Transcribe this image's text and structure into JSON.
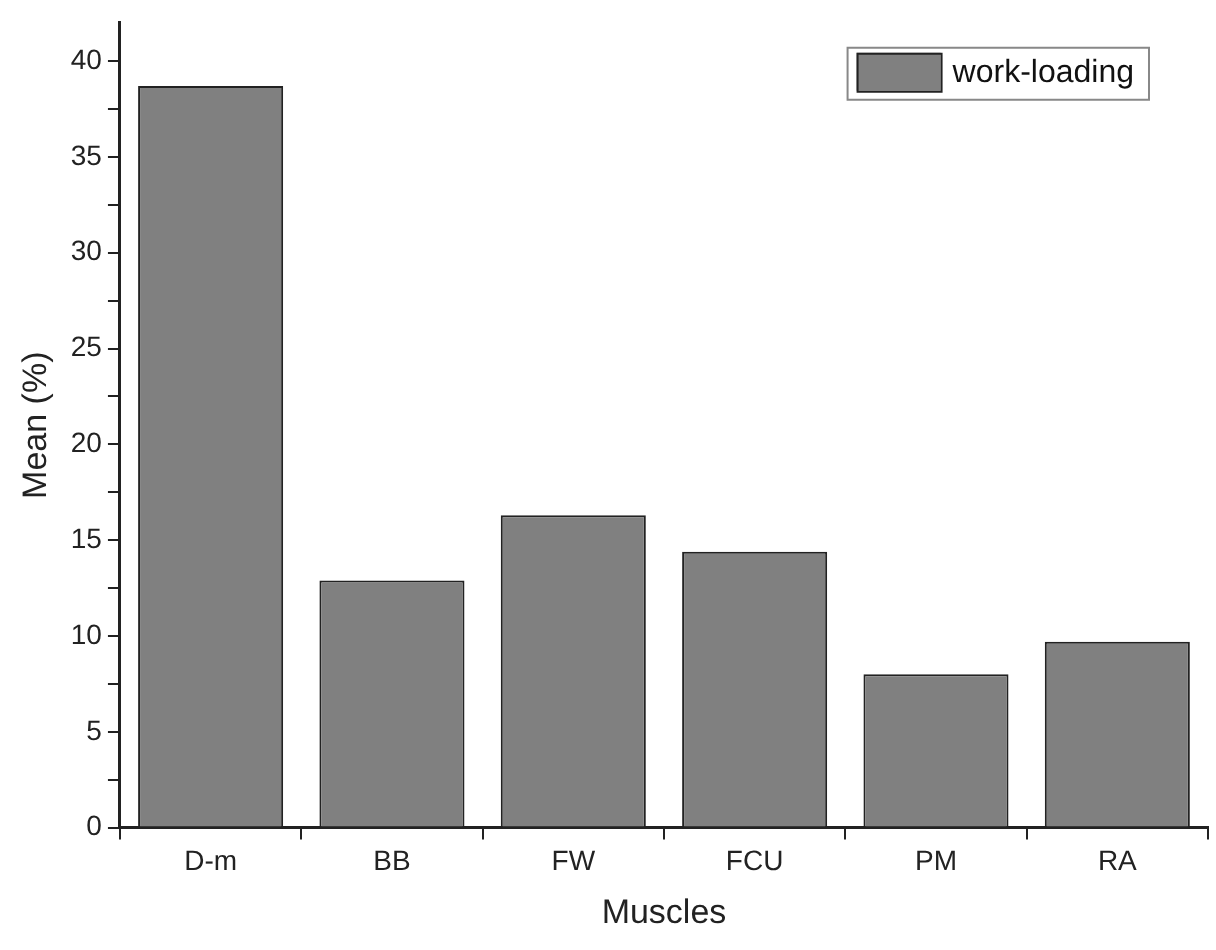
{
  "chart_data": {
    "type": "bar",
    "xlabel": "Muscles",
    "ylabel": "Mean (%)",
    "categories": [
      "D-m",
      "BB",
      "FW",
      "FCU",
      "PM",
      "RA"
    ],
    "series": [
      {
        "name": "work-loading",
        "color": "#808080",
        "values": [
          38.7,
          12.9,
          16.3,
          14.4,
          8.0,
          9.7
        ]
      }
    ],
    "ylim": [
      0,
      42
    ],
    "yticks": [
      0,
      {
        "value": 2.5,
        "label": null
      },
      5,
      {
        "value": 7.5,
        "label": null
      },
      10,
      {
        "value": 12.5,
        "label": null
      },
      15,
      {
        "value": 17.5,
        "label": null
      },
      20,
      {
        "value": 22.5,
        "label": null
      },
      25,
      {
        "value": 27.5,
        "label": null
      },
      30,
      {
        "value": 32.5,
        "label": null
      },
      35,
      {
        "value": 37.5,
        "label": null
      },
      40
    ],
    "grid": false,
    "legend": "top right"
  }
}
